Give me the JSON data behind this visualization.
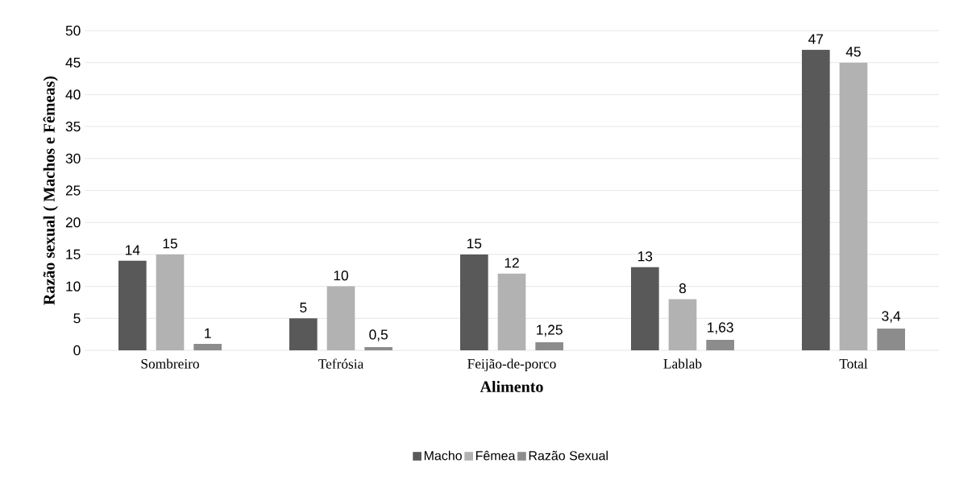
{
  "chart_data": {
    "type": "bar",
    "xlabel": "Alimento",
    "ylabel": "Razão sexual ( Machos e Fêmeas)",
    "categories": [
      "Sombreiro",
      "Tefrósia",
      "Feijão-de-porco",
      "Lablab",
      "Total"
    ],
    "series": [
      {
        "name": "Macho",
        "color": "#595959",
        "values": [
          14,
          5,
          15,
          13,
          47
        ],
        "value_labels": [
          "14",
          "5",
          "15",
          "13",
          "47"
        ]
      },
      {
        "name": "Fêmea",
        "color": "#b2b2b2",
        "values": [
          15,
          10,
          12,
          8,
          45
        ],
        "value_labels": [
          "15",
          "10",
          "12",
          "8",
          "45"
        ]
      },
      {
        "name": "Razão Sexual",
        "color": "#8c8c8c",
        "values": [
          1,
          0.5,
          1.25,
          1.63,
          3.4
        ],
        "value_labels": [
          "1",
          "0,5",
          "1,25",
          "1,63",
          "3,4"
        ]
      }
    ],
    "ylim": [
      0,
      50
    ],
    "yticks": [
      0,
      5,
      10,
      15,
      20,
      25,
      30,
      35,
      40,
      45,
      50
    ],
    "grid": "y",
    "legend": "bottom"
  }
}
